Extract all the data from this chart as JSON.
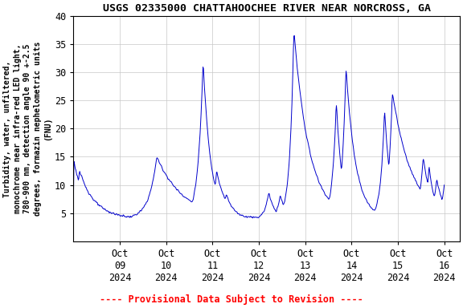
{
  "title": "USGS 02335000 CHATTAHOOCHEE RIVER NEAR NORCROSS, GA",
  "ylabel_lines": [
    "Turbidity, water, unfiltered,",
    "monochrome near infra-red LED light,",
    "780-900 nm, detection angle 90 +-2.5",
    "degrees, formazin nephelometric units",
    "(FNU)"
  ],
  "footer": "---- Provisional Data Subject to Revision ----",
  "footer_color": "#ff0000",
  "line_color": "#0000cc",
  "background_color": "#ffffff",
  "plot_bg_color": "#ffffff",
  "grid_color": "#c8c8c8",
  "ylim": [
    0,
    40
  ],
  "yticks": [
    5,
    10,
    15,
    20,
    25,
    30,
    35,
    40
  ],
  "title_fontsize": 9.5,
  "ylabel_fontsize": 7.0,
  "tick_fontsize": 8.5,
  "footer_fontsize": 8.5,
  "line_width": 0.7
}
